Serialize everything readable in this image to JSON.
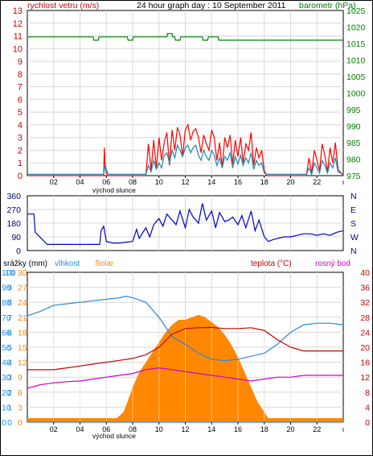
{
  "chart_data": [
    {
      "type": "line",
      "title": "24 hour graph day : 10 September 2011",
      "left_axis": {
        "label": "rychlost vetru (m/s)",
        "ylim": [
          0,
          13
        ],
        "color": "#cc0000",
        "ticks": [
          "0",
          "1",
          "2",
          "3",
          "4",
          "5",
          "6",
          "7",
          "8",
          "9",
          "10",
          "11",
          "12",
          "13"
        ]
      },
      "right_axis": {
        "label": "barometr (hPa)",
        "ylim": [
          975,
          1025
        ],
        "color": "#008000",
        "ticks": [
          "975",
          "980",
          "985",
          "990",
          "995",
          "1000",
          "1005",
          "1010",
          "1015",
          "1020",
          "1025"
        ]
      },
      "x_ticks": [
        "02",
        "04",
        "06",
        "08",
        "10",
        "12",
        "14",
        "16",
        "18",
        "20",
        "22"
      ],
      "x_annotation": "východ slunce",
      "grid": true,
      "series": [
        {
          "name": "barometr",
          "axis": "right",
          "color": "#008000",
          "x": [
            0,
            5,
            5.05,
            5.4,
            5.45,
            7.6,
            7.65,
            8.0,
            8.05,
            10.6,
            10.65,
            11.0,
            11.05,
            11.2,
            11.25,
            11.6,
            11.65,
            13.3,
            13.35,
            13.7,
            13.75,
            14.5,
            14.55,
            15.0,
            15.05,
            24
          ],
          "y": [
            1017,
            1017,
            1016,
            1016,
            1017,
            1017,
            1016,
            1016,
            1017,
            1017,
            1018,
            1018,
            1017,
            1017,
            1016,
            1016,
            1017,
            1017,
            1016,
            1016,
            1017,
            1017,
            1016,
            1016,
            1016,
            1016
          ]
        },
        {
          "name": "gust",
          "axis": "left",
          "color": "#ff0000",
          "x": [
            0,
            5.8,
            5.85,
            5.9,
            6.0,
            6.1,
            6.2,
            9.0,
            9.2,
            9.4,
            9.6,
            9.8,
            10.0,
            10.2,
            10.4,
            10.6,
            10.8,
            11.0,
            11.2,
            11.4,
            11.6,
            11.8,
            12.0,
            12.2,
            12.4,
            12.6,
            12.8,
            13.0,
            13.2,
            13.4,
            13.6,
            13.8,
            14.0,
            14.2,
            14.4,
            14.6,
            14.8,
            15.0,
            15.2,
            15.4,
            15.6,
            15.8,
            16.0,
            16.2,
            16.4,
            16.6,
            16.8,
            17.0,
            17.2,
            17.4,
            17.6,
            17.8,
            18.0,
            18.2,
            18.4,
            18.6,
            21.0,
            21.2,
            21.4,
            21.6,
            21.8,
            22.0,
            22.2,
            22.4,
            22.6,
            22.8,
            23.0,
            23.2,
            23.4,
            23.6,
            24
          ],
          "y": [
            0,
            0,
            2.2,
            1.0,
            0.2,
            0,
            0,
            0,
            2.5,
            0.4,
            2.8,
            0.6,
            3.0,
            1.2,
            2.6,
            3.4,
            0.8,
            3.6,
            2.0,
            3.8,
            3.2,
            1.5,
            3.6,
            4.0,
            2.8,
            3.5,
            3.7,
            3.0,
            1.8,
            3.2,
            2.5,
            2.0,
            3.6,
            3.0,
            1.2,
            2.6,
            0.6,
            3.0,
            2.2,
            3.2,
            0.9,
            2.8,
            1.5,
            3.0,
            1.0,
            2.5,
            2.0,
            3.4,
            0.8,
            2.2,
            1.4,
            2.0,
            0.4,
            0,
            0,
            0,
            0,
            0,
            1.4,
            0.2,
            2.0,
            1.2,
            0.4,
            2.5,
            1.6,
            0.3,
            2.2,
            1.0,
            2.6,
            0.5,
            0
          ]
        },
        {
          "name": "wind",
          "axis": "left",
          "color": "#1a8ab0",
          "x": [
            0,
            5.8,
            5.9,
            6.1,
            6.2,
            9.0,
            9.2,
            9.4,
            9.6,
            9.8,
            10.0,
            10.2,
            10.4,
            10.6,
            10.8,
            11.0,
            11.2,
            11.4,
            11.6,
            11.8,
            12.0,
            12.2,
            12.4,
            12.6,
            12.8,
            13.0,
            13.2,
            13.4,
            13.6,
            13.8,
            14.0,
            14.2,
            14.4,
            14.6,
            14.8,
            15.0,
            15.2,
            15.4,
            15.6,
            15.8,
            16.0,
            16.2,
            16.4,
            16.6,
            16.8,
            17.0,
            17.2,
            17.4,
            17.6,
            17.8,
            18.0,
            18.2,
            18.4,
            18.6,
            21.0,
            21.2,
            21.4,
            21.6,
            21.8,
            22.0,
            22.2,
            22.4,
            22.6,
            22.8,
            23.0,
            23.2,
            23.4,
            23.6,
            24
          ],
          "y": [
            0.1,
            0.1,
            0.8,
            0.2,
            0.1,
            0.1,
            0.8,
            0.3,
            1.2,
            0.5,
            1.0,
            0.6,
            1.6,
            1.8,
            1.0,
            2.0,
            1.4,
            2.4,
            2.0,
            1.5,
            2.2,
            2.4,
            1.8,
            2.2,
            2.4,
            1.6,
            1.2,
            2.0,
            1.5,
            1.2,
            2.0,
            1.6,
            0.8,
            1.4,
            0.6,
            1.5,
            1.2,
            1.8,
            0.6,
            1.5,
            0.9,
            1.6,
            0.8,
            1.4,
            1.0,
            1.8,
            0.5,
            1.2,
            0.8,
            1.0,
            0.2,
            0.1,
            0.1,
            0.1,
            0.1,
            0.1,
            0.6,
            0.1,
            1.0,
            0.6,
            0.2,
            1.2,
            0.8,
            0.2,
            1.0,
            0.6,
            1.4,
            0.3,
            0.1
          ]
        }
      ]
    },
    {
      "type": "line",
      "title": "",
      "left_axis": {
        "label": "",
        "ylim": [
          0,
          360
        ],
        "ticks": [
          "0",
          "90",
          "180",
          "270",
          "360"
        ]
      },
      "right_axis_labels": [
        "N",
        "W",
        "S",
        "E",
        "N"
      ],
      "grid": true,
      "series": [
        {
          "name": "",
          "color": "#0000cc",
          "x": [
            0,
            0.5,
            0.6,
            1.5,
            2.0,
            3.0,
            4.0,
            5.0,
            5.5,
            5.6,
            5.8,
            6.0,
            6.5,
            7.0,
            7.5,
            8.0,
            8.3,
            8.5,
            9.0,
            9.3,
            9.6,
            10.0,
            10.3,
            10.6,
            11.0,
            11.3,
            11.6,
            12.0,
            12.3,
            12.6,
            13.0,
            13.3,
            13.6,
            14.0,
            14.3,
            14.6,
            15.0,
            15.3,
            15.6,
            16.0,
            16.3,
            16.6,
            17.0,
            17.3,
            17.6,
            18.0,
            18.3,
            18.6,
            19.0,
            19.5,
            20.0,
            20.5,
            21.0,
            21.5,
            22.0,
            22.5,
            23.0,
            23.5,
            24
          ],
          "y": [
            240,
            240,
            120,
            40,
            40,
            40,
            40,
            40,
            40,
            130,
            160,
            60,
            50,
            50,
            55,
            60,
            140,
            80,
            150,
            90,
            170,
            210,
            160,
            240,
            200,
            170,
            260,
            150,
            270,
            220,
            180,
            310,
            200,
            260,
            150,
            250,
            190,
            200,
            220,
            170,
            230,
            150,
            260,
            130,
            200,
            90,
            60,
            70,
            80,
            90,
            90,
            100,
            110,
            110,
            100,
            110,
            100,
            120,
            130
          ]
        }
      ]
    },
    {
      "type": "area",
      "title": "",
      "axis_headers": {
        "precip": "srážky (mm)",
        "humidity": "vlhkost",
        "solar": "Solar",
        "temperature": "teplota (°C)",
        "dewpoint": "rosný bod"
      },
      "axes": {
        "humidity": {
          "ylim": [
            0,
            100
          ],
          "ticks": [
            "0",
            "10",
            "20",
            "30",
            "40",
            "50",
            "60",
            "70",
            "80",
            "90",
            "100"
          ],
          "color": "#1e90ff"
        },
        "precip": {
          "ylim": [
            0,
            10
          ],
          "ticks": [
            "0",
            "1",
            "2",
            "3",
            "4",
            "5",
            "6",
            "7",
            "8",
            "9",
            "10"
          ],
          "color": "#1e90ff"
        },
        "solar": {
          "ylim": [
            0,
            30
          ],
          "ticks": [
            "0",
            "3",
            "6",
            "9",
            "12",
            "15",
            "18",
            "21",
            "24",
            "27",
            "30"
          ],
          "color": "#ff8800"
        },
        "temperature": {
          "ylim": [
            0,
            40
          ],
          "ticks": [
            "0",
            "4",
            "8",
            "12",
            "16",
            "20",
            "24",
            "28",
            "32",
            "36",
            "40"
          ],
          "color": "#cc0000"
        }
      },
      "x_ticks": [
        "02",
        "04",
        "06",
        "08",
        "10",
        "12",
        "14",
        "16",
        "18",
        "20",
        "22"
      ],
      "x_annotation": "východ slunce",
      "grid": true,
      "series": [
        {
          "name": "vlhkost",
          "axis": "humidity",
          "color": "#2a8ad4",
          "x": [
            0,
            1,
            2,
            3,
            4,
            5,
            6,
            7,
            7.5,
            8,
            9,
            10,
            11,
            12,
            13,
            14,
            15,
            16,
            17,
            18,
            19,
            20,
            21,
            22,
            23,
            24
          ],
          "y": [
            71,
            74,
            78,
            79,
            80,
            81,
            82,
            83,
            84,
            83,
            80,
            70,
            57,
            52,
            46,
            42,
            41,
            42,
            44,
            46,
            52,
            60,
            65,
            66,
            66,
            65
          ]
        },
        {
          "name": "teplota",
          "axis": "temperature",
          "color": "#cc0000",
          "x": [
            0,
            1,
            2,
            3,
            4,
            5,
            6,
            7,
            8,
            9,
            10,
            11,
            12,
            13,
            14,
            15,
            16,
            17,
            18,
            19,
            20,
            21,
            22,
            23,
            24
          ],
          "y": [
            14,
            14,
            14,
            14.5,
            15,
            15.5,
            16,
            16.5,
            17,
            18,
            20,
            23.5,
            25,
            25.2,
            25.3,
            25,
            25,
            25.2,
            24.5,
            22,
            20,
            19,
            19,
            19,
            19
          ]
        },
        {
          "name": "rosný bod",
          "axis": "temperature",
          "color": "#cc00cc",
          "x": [
            0,
            1,
            2,
            3,
            4,
            5,
            6,
            7,
            8,
            9,
            10,
            11,
            12,
            13,
            14,
            15,
            16,
            17,
            18,
            19,
            20,
            21,
            22,
            23,
            24
          ],
          "y": [
            9,
            10,
            10.5,
            10.8,
            11,
            11.5,
            12,
            12.5,
            13,
            14,
            14.5,
            14,
            13.5,
            13,
            12.5,
            12,
            11.5,
            11,
            11.5,
            12,
            12,
            12.5,
            12.5,
            12.5,
            12.5
          ]
        },
        {
          "name": "Solar",
          "axis": "solar",
          "color": "#ff8800",
          "fill": true,
          "x": [
            0,
            6.2,
            6.8,
            7.3,
            7.6,
            8.0,
            8.5,
            9.0,
            9.5,
            10.0,
            10.5,
            11.0,
            11.5,
            12.0,
            12.5,
            13.0,
            13.5,
            14.0,
            14.5,
            15.0,
            15.5,
            16.0,
            16.5,
            17.0,
            17.5,
            18.0,
            18.3,
            18.6,
            24
          ],
          "y": [
            0.8,
            0.8,
            0.8,
            2,
            4,
            7,
            10,
            12,
            14,
            16,
            18,
            19.5,
            20.5,
            20.5,
            21,
            21.5,
            21,
            20,
            19,
            17.5,
            15.5,
            13,
            10,
            7,
            4,
            2,
            0.8,
            0.8,
            0.8
          ]
        },
        {
          "name": "srážky",
          "axis": "precip",
          "color": "#1e90ff",
          "x": [
            0,
            24
          ],
          "y": [
            0,
            0
          ]
        }
      ]
    }
  ]
}
